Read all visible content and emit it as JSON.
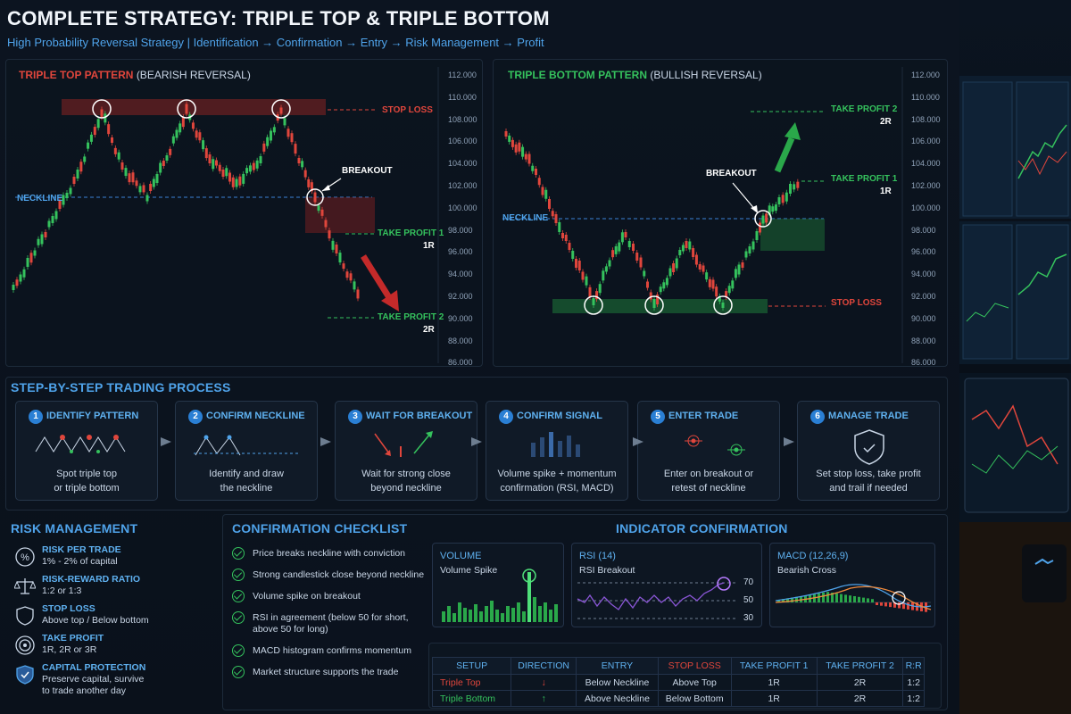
{
  "header": {
    "title": "COMPLETE STRATEGY: TRIPLE TOP & TRIPLE BOTTOM",
    "subtitle": "High Probability Reversal Strategy | Identification → Confirmation → Entry → Risk Management → Profit"
  },
  "triple_top": {
    "title": "TRIPLE TOP PATTERN",
    "subtitle": "(BEARISH REVERSAL)",
    "neckline": "NECKLINE",
    "breakout": "BREAKOUT",
    "stop_loss": "STOP LOSS",
    "tp1": "TAKE PROFIT 1",
    "tp1_r": "1R",
    "tp2": "TAKE PROFIT 2",
    "tp2_r": "2R",
    "axis": [
      "112.000",
      "110.000",
      "108.000",
      "106.000",
      "104.000",
      "102.000",
      "100.000",
      "98.000",
      "96.000",
      "94.000",
      "92.000",
      "90.000",
      "88.000",
      "86.000"
    ]
  },
  "triple_bottom": {
    "title": "TRIPLE BOTTOM PATTERN",
    "subtitle": "(BULLISH REVERSAL)",
    "neckline": "NECKLINE",
    "breakout": "BREAKOUT",
    "stop_loss": "STOP LOSS",
    "tp1": "TAKE PROFIT 1",
    "tp1_r": "1R",
    "tp2": "TAKE PROFIT 2",
    "tp2_r": "2R",
    "axis": [
      "112.000",
      "110.000",
      "108.000",
      "106.000",
      "104.000",
      "102.000",
      "100.000",
      "98.000",
      "96.000",
      "94.000",
      "92.000",
      "90.000",
      "88.000",
      "86.000"
    ]
  },
  "process": {
    "heading": "STEP-BY-STEP TRADING PROCESS",
    "steps": [
      {
        "num": "1",
        "label": "IDENTIFY PATTERN",
        "desc": "Spot triple top\nor triple bottom"
      },
      {
        "num": "2",
        "label": "CONFIRM NECKLINE",
        "desc": "Identify and draw\nthe neckline"
      },
      {
        "num": "3",
        "label": "WAIT FOR BREAKOUT",
        "desc": "Wait for strong close\nbeyond neckline"
      },
      {
        "num": "4",
        "label": "CONFIRM SIGNAL",
        "desc": "Volume spike + momentum\nconfirmation (RSI, MACD)"
      },
      {
        "num": "5",
        "label": "ENTER TRADE",
        "desc": "Enter on breakout or\nretest of neckline"
      },
      {
        "num": "6",
        "label": "MANAGE TRADE",
        "desc": "Set stop loss, take profit\nand trail if needed"
      }
    ]
  },
  "risk": {
    "heading": "RISK MANAGEMENT",
    "items": [
      {
        "label": "RISK PER TRADE",
        "value": "1% - 2% of capital",
        "icon": "percent-icon"
      },
      {
        "label": "RISK-REWARD RATIO",
        "value": "1:2 or 1:3",
        "icon": "scale-icon"
      },
      {
        "label": "STOP LOSS",
        "value": "Above top / Below bottom",
        "icon": "shield-icon"
      },
      {
        "label": "TAKE PROFIT",
        "value": "1R, 2R or 3R",
        "icon": "target-icon"
      },
      {
        "label": "CAPITAL PROTECTION",
        "value": "Preserve capital, survive\nto trade another day",
        "icon": "shield-check-icon"
      }
    ]
  },
  "checklist": {
    "heading": "CONFIRMATION CHECKLIST",
    "items": [
      "Price breaks neckline with conviction",
      "Strong candlestick close beyond neckline",
      "Volume spike on breakout",
      "RSI in agreement (below 50 for short,\nabove 50 for long)",
      "MACD histogram confirms momentum",
      "Market structure supports the trade"
    ]
  },
  "indicators": {
    "heading": "INDICATOR CONFIRMATION",
    "volume": {
      "title": "VOLUME",
      "sub": "Volume Spike"
    },
    "rsi": {
      "title": "RSI (14)",
      "sub": "RSI Breakout",
      "levels": [
        "70",
        "50",
        "30"
      ]
    },
    "macd": {
      "title": "MACD (12,26,9)",
      "sub": "Bearish Cross"
    }
  },
  "setup_table": {
    "headers": [
      "SETUP",
      "DIRECTION",
      "ENTRY",
      "STOP LOSS",
      "TAKE PROFIT 1",
      "TAKE PROFIT 2",
      "R:R"
    ],
    "rows": [
      {
        "setup": "Triple Top",
        "direction": "↓",
        "entry": "Below Neckline",
        "stop": "Above Top",
        "tp1": "1R",
        "tp2": "2R",
        "rr": "1:2"
      },
      {
        "setup": "Triple Bottom",
        "direction": "↑",
        "entry": "Above Neckline",
        "stop": "Below Bottom",
        "tp1": "1R",
        "tp2": "2R",
        "rr": "1:2"
      }
    ]
  },
  "colors": {
    "accent": "#4fa3ea",
    "bull": "#35c25d",
    "bear": "#e0463c",
    "bg": "#0a111b"
  }
}
